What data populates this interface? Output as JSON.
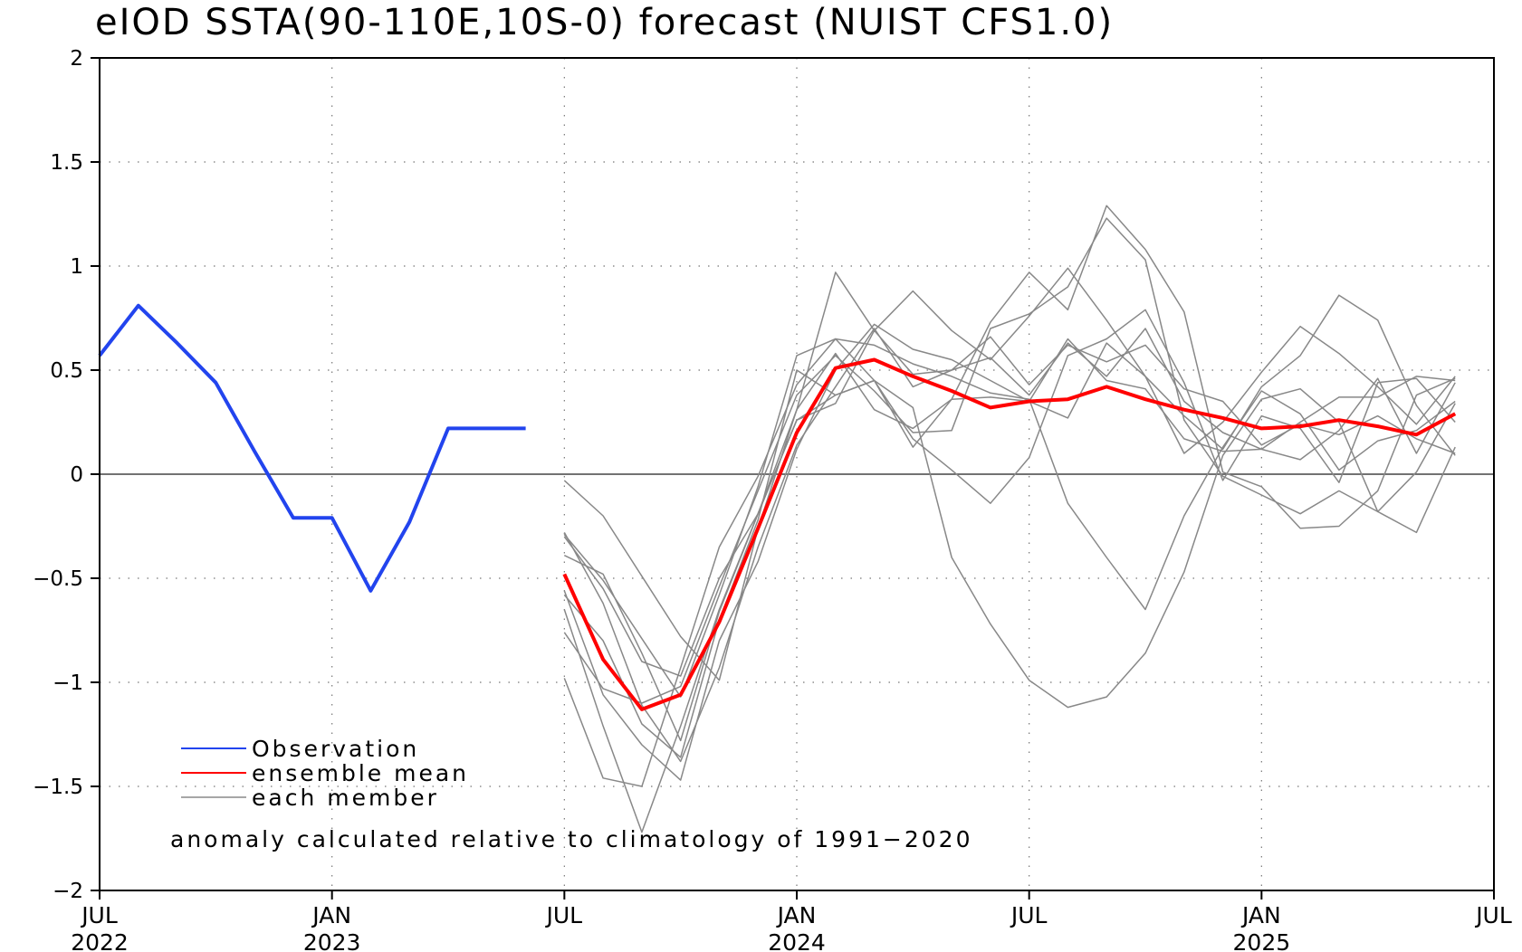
{
  "chart_data": {
    "type": "line",
    "title": "eIOD SSTA(90-110E,10S-0) forecast (NUIST CFS1.0)",
    "xlabel": "",
    "ylabel": "",
    "xlim": [
      "2022-07",
      "2025-07"
    ],
    "ylim": [
      -2,
      2
    ],
    "yticks": [
      2,
      1.5,
      1,
      0.5,
      0,
      -0.5,
      -1,
      -1.5,
      -2
    ],
    "ytick_labels": [
      "2",
      "1.5",
      "1",
      "0.5",
      "0",
      "−0.5",
      "−1",
      "−1.5",
      "−2"
    ],
    "xticks": [
      {
        "month": "2022-07",
        "line1": "JUL",
        "line2": "2022"
      },
      {
        "month": "2023-01",
        "line1": "JAN",
        "line2": "2023"
      },
      {
        "month": "2023-07",
        "line1": "JUL",
        "line2": ""
      },
      {
        "month": "2024-01",
        "line1": "JAN",
        "line2": "2024"
      },
      {
        "month": "2024-07",
        "line1": "JUL",
        "line2": ""
      },
      {
        "month": "2025-01",
        "line1": "JAN",
        "line2": "2025"
      },
      {
        "month": "2025-07",
        "line1": "JUL",
        "line2": ""
      }
    ],
    "grid": true,
    "zero_line": true,
    "legend_position": "bottom-left",
    "series": [
      {
        "name": "Observation",
        "color": "#2244ee",
        "x": [
          "2022-07",
          "2022-08",
          "2022-09",
          "2022-10",
          "2022-11",
          "2022-12",
          "2023-01",
          "2023-02",
          "2023-03",
          "2023-04",
          "2023-05",
          "2023-06"
        ],
        "y": [
          0.57,
          0.81,
          0.63,
          0.44,
          0.11,
          -0.21,
          -0.21,
          -0.56,
          -0.23,
          0.22,
          0.22,
          0.22
        ]
      },
      {
        "name": "ensemble mean",
        "color": "#ff0000",
        "x": [
          "2023-07",
          "2023-08",
          "2023-09",
          "2023-10",
          "2023-11",
          "2023-12",
          "2024-01",
          "2024-02",
          "2024-03",
          "2024-04",
          "2024-05",
          "2024-06",
          "2024-07",
          "2024-08",
          "2024-09",
          "2024-10",
          "2024-11",
          "2024-12",
          "2025-01",
          "2025-02",
          "2025-03",
          "2025-04",
          "2025-05",
          "2025-06"
        ],
        "y": [
          -0.48,
          -0.89,
          -1.13,
          -1.06,
          -0.71,
          -0.26,
          0.2,
          0.51,
          0.55,
          0.47,
          0.4,
          0.32,
          0.35,
          0.36,
          0.42,
          0.36,
          0.31,
          0.27,
          0.22,
          0.23,
          0.26,
          0.23,
          0.19,
          0.29
        ]
      }
    ],
    "members": {
      "name": "each member",
      "color": "#888888",
      "x": [
        "2023-07",
        "2023-08",
        "2023-09",
        "2023-10",
        "2023-11",
        "2023-12",
        "2024-01",
        "2024-02",
        "2024-03",
        "2024-04",
        "2024-05",
        "2024-06",
        "2024-07",
        "2024-08",
        "2024-09",
        "2024-10",
        "2024-11",
        "2024-12",
        "2025-01",
        "2025-02",
        "2025-03",
        "2025-04",
        "2025-05",
        "2025-06"
      ],
      "y": [
        [
          -0.03,
          -0.2,
          -0.49,
          -0.78,
          -0.99,
          -0.26,
          0.31,
          0.97,
          0.69,
          0.88,
          0.69,
          0.55,
          0.76,
          0.99,
          0.74,
          0.47,
          0.1,
          0.25,
          0.49,
          0.71,
          0.58,
          0.42,
          0.24,
          0.47
        ],
        [
          -0.28,
          -0.62,
          -1.11,
          -1.38,
          -0.93,
          -0.35,
          0.14,
          0.42,
          0.7,
          0.42,
          0.5,
          0.56,
          0.38,
          0.63,
          0.47,
          0.7,
          0.35,
          0.2,
          0.12,
          0.07,
          0.21,
          0.46,
          0.1,
          0.44
        ],
        [
          -0.56,
          -1.06,
          -1.3,
          -1.47,
          -0.8,
          -0.42,
          0.12,
          0.5,
          0.72,
          0.6,
          0.55,
          0.45,
          0.35,
          0.27,
          0.63,
          0.47,
          0.28,
          0.12,
          0.42,
          0.57,
          0.86,
          0.74,
          0.33,
          0.09
        ],
        [
          -0.65,
          -1.21,
          -1.72,
          -1.21,
          -0.65,
          -0.19,
          0.26,
          0.38,
          0.45,
          0.13,
          0.36,
          0.73,
          0.97,
          0.79,
          1.29,
          1.08,
          0.78,
          0.01,
          -0.06,
          -0.26,
          -0.25,
          -0.08,
          0.38,
          0.46
        ],
        [
          -0.98,
          -1.46,
          -1.5,
          -0.93,
          -0.35,
          -0.01,
          0.43,
          0.65,
          0.62,
          0.53,
          0.47,
          0.39,
          0.36,
          -0.14,
          -0.4,
          -0.65,
          -0.2,
          0.13,
          0.4,
          0.29,
          0.02,
          0.16,
          0.21,
          0.35
        ],
        [
          -0.29,
          -0.51,
          -0.79,
          -1.07,
          -0.58,
          -0.06,
          0.57,
          0.65,
          0.45,
          0.17,
          0.02,
          -0.14,
          0.08,
          0.57,
          0.65,
          0.79,
          0.44,
          -0.03,
          0.28,
          0.22,
          -0.04,
          0.44,
          0.46,
          0.25
        ],
        [
          -0.76,
          -1.03,
          -1.1,
          -1.02,
          -0.54,
          -0.08,
          0.38,
          0.57,
          0.4,
          0.2,
          0.21,
          0.7,
          0.77,
          0.9,
          1.23,
          1.03,
          0.26,
          -0.01,
          -0.1,
          -0.19,
          -0.08,
          -0.18,
          -0.28,
          0.13
        ],
        [
          -0.39,
          -0.48,
          -0.86,
          -1.28,
          -0.66,
          -0.19,
          0.26,
          0.34,
          0.69,
          0.48,
          0.5,
          0.66,
          0.43,
          0.62,
          0.54,
          0.62,
          0.41,
          0.35,
          0.14,
          0.24,
          0.19,
          0.28,
          0.17,
          0.1
        ],
        [
          -0.58,
          -0.8,
          -1.2,
          -1.36,
          -0.7,
          -0.22,
          0.5,
          0.38,
          0.45,
          0.32,
          -0.4,
          -0.72,
          -0.99,
          -1.12,
          -1.07,
          -0.86,
          -0.47,
          0.09,
          0.36,
          0.41,
          0.25,
          -0.18,
          0.01,
          0.34
        ],
        [
          -0.3,
          -0.55,
          -0.9,
          -0.97,
          -0.5,
          -0.19,
          0.31,
          0.58,
          0.31,
          0.22,
          0.36,
          0.37,
          0.35,
          0.65,
          0.45,
          0.41,
          0.17,
          0.11,
          0.12,
          0.25,
          0.37,
          0.37,
          0.47,
          0.45
        ]
      ]
    },
    "legend": [
      {
        "label": "Observation",
        "color": "#2244ee"
      },
      {
        "label": "ensemble mean",
        "color": "#ff0000"
      },
      {
        "label": "each member",
        "color": "#888888"
      }
    ],
    "annotation": "anomaly calculated relative to climatology of 1991−2020"
  }
}
